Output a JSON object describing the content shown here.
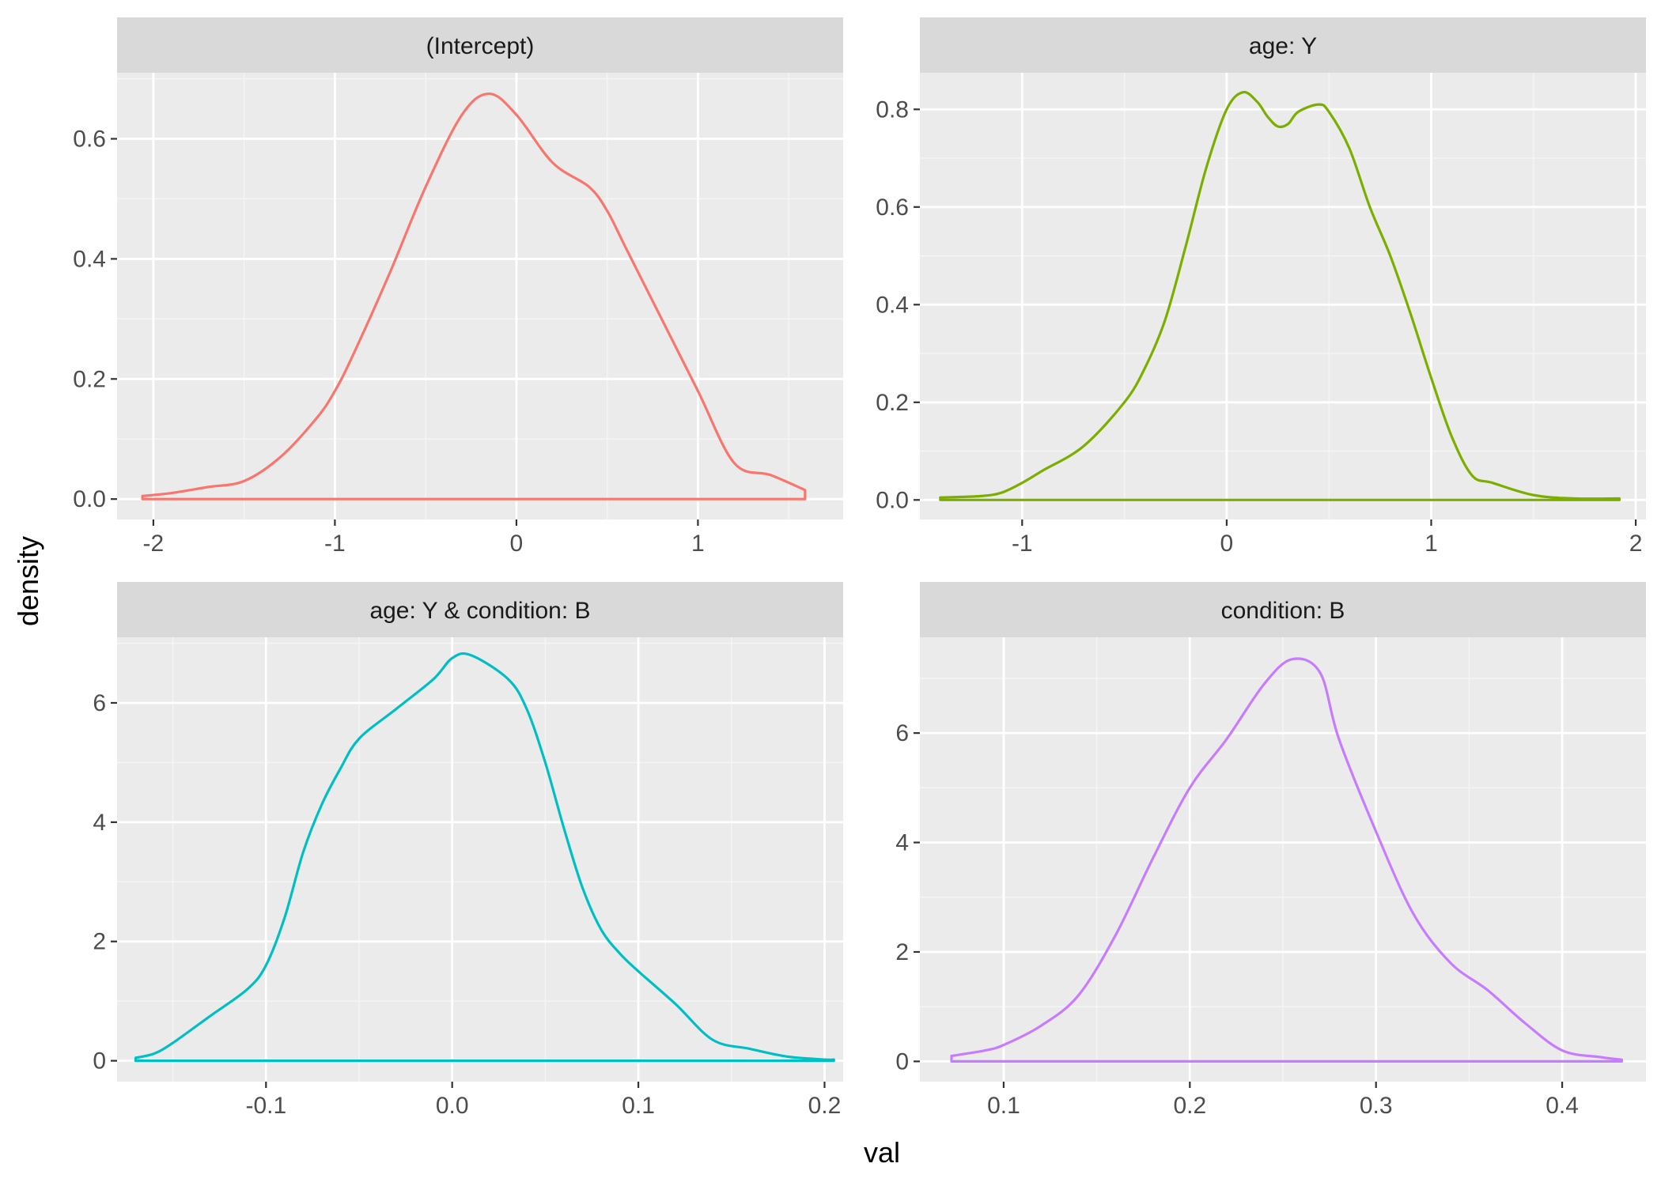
{
  "chart_data": {
    "type": "line",
    "figure": {
      "xlabel": "val",
      "ylabel": "density",
      "layout": "2x2 facet grid, free scales"
    },
    "panels": [
      {
        "strip": "(Intercept)",
        "color": "#F8766D",
        "xlim": [
          -2.2,
          1.8
        ],
        "ylim": [
          -0.034,
          0.71
        ],
        "xticks": [
          -2,
          -1,
          0,
          1
        ],
        "xtick_labels": [
          "-2",
          "-1",
          "0",
          "1"
        ],
        "yticks": [
          0.0,
          0.2,
          0.4,
          0.6
        ],
        "ytick_labels": [
          "0.0",
          "0.2",
          "0.4",
          "0.6"
        ],
        "x": [
          -2.06,
          -1.9,
          -1.7,
          -1.5,
          -1.3,
          -1.1,
          -1.0,
          -0.9,
          -0.7,
          -0.5,
          -0.3,
          -0.15,
          0.0,
          0.2,
          0.4,
          0.5,
          0.6,
          0.8,
          1.0,
          1.2,
          1.4,
          1.59
        ],
        "y": [
          0.005,
          0.01,
          0.02,
          0.03,
          0.07,
          0.135,
          0.18,
          0.24,
          0.375,
          0.52,
          0.64,
          0.675,
          0.64,
          0.56,
          0.52,
          0.48,
          0.42,
          0.3,
          0.18,
          0.06,
          0.04,
          0.015
        ]
      },
      {
        "strip": "age: Y",
        "color": "#7CAE00",
        "xlim": [
          -1.5,
          2.05
        ],
        "ylim": [
          -0.04,
          0.875
        ],
        "xticks": [
          -1,
          0,
          1,
          2
        ],
        "xtick_labels": [
          "-1",
          "0",
          "1",
          "2"
        ],
        "yticks": [
          0.0,
          0.2,
          0.4,
          0.6,
          0.8
        ],
        "ytick_labels": [
          "0.0",
          "0.2",
          "0.4",
          "0.6",
          "0.8"
        ],
        "x": [
          -1.4,
          -1.2,
          -1.1,
          -1.0,
          -0.9,
          -0.7,
          -0.5,
          -0.4,
          -0.3,
          -0.2,
          -0.1,
          0.0,
          0.08,
          0.15,
          0.2,
          0.25,
          0.3,
          0.35,
          0.45,
          0.5,
          0.6,
          0.7,
          0.8,
          0.9,
          1.0,
          1.1,
          1.2,
          1.3,
          1.5,
          1.7,
          1.92
        ],
        "y": [
          0.005,
          0.008,
          0.015,
          0.035,
          0.06,
          0.11,
          0.2,
          0.27,
          0.37,
          0.52,
          0.68,
          0.8,
          0.835,
          0.815,
          0.785,
          0.765,
          0.77,
          0.795,
          0.81,
          0.795,
          0.72,
          0.6,
          0.5,
          0.38,
          0.25,
          0.13,
          0.05,
          0.035,
          0.01,
          0.003,
          0.003
        ]
      },
      {
        "strip": "age: Y & condition: B",
        "color": "#00BFC4",
        "xlim": [
          -0.18,
          0.21
        ],
        "ylim": [
          -0.35,
          7.1
        ],
        "xticks": [
          -0.1,
          0.0,
          0.1,
          0.2
        ],
        "xtick_labels": [
          "-0.1",
          "0.0",
          "0.1",
          "0.2"
        ],
        "yticks": [
          0,
          2,
          4,
          6
        ],
        "ytick_labels": [
          "0",
          "2",
          "4",
          "6"
        ],
        "x": [
          -0.17,
          -0.16,
          -0.15,
          -0.13,
          -0.11,
          -0.1,
          -0.09,
          -0.08,
          -0.07,
          -0.06,
          -0.05,
          -0.03,
          -0.01,
          0.0,
          0.01,
          0.03,
          0.04,
          0.05,
          0.06,
          0.07,
          0.08,
          0.09,
          0.1,
          0.12,
          0.14,
          0.16,
          0.18,
          0.2,
          0.205
        ],
        "y": [
          0.05,
          0.12,
          0.3,
          0.75,
          1.2,
          1.6,
          2.4,
          3.5,
          4.3,
          4.9,
          5.4,
          5.9,
          6.4,
          6.75,
          6.8,
          6.4,
          5.9,
          5.0,
          3.9,
          2.9,
          2.2,
          1.8,
          1.5,
          0.95,
          0.35,
          0.2,
          0.07,
          0.02,
          0.02
        ]
      },
      {
        "strip": "condition: B",
        "color": "#C77CFF",
        "xlim": [
          0.055,
          0.445
        ],
        "ylim": [
          -0.37,
          7.75
        ],
        "xticks": [
          0.1,
          0.2,
          0.3,
          0.4
        ],
        "xtick_labels": [
          "0.1",
          "0.2",
          "0.3",
          "0.4"
        ],
        "yticks": [
          0,
          2,
          4,
          6
        ],
        "ytick_labels": [
          "0",
          "2",
          "4",
          "6"
        ],
        "x": [
          0.072,
          0.09,
          0.1,
          0.12,
          0.14,
          0.16,
          0.18,
          0.2,
          0.22,
          0.24,
          0.255,
          0.27,
          0.28,
          0.3,
          0.32,
          0.34,
          0.36,
          0.38,
          0.4,
          0.42,
          0.432
        ],
        "y": [
          0.1,
          0.2,
          0.3,
          0.65,
          1.2,
          2.3,
          3.7,
          5.0,
          5.9,
          6.9,
          7.35,
          7.1,
          5.9,
          4.2,
          2.7,
          1.8,
          1.3,
          0.7,
          0.2,
          0.08,
          0.03
        ]
      }
    ]
  }
}
